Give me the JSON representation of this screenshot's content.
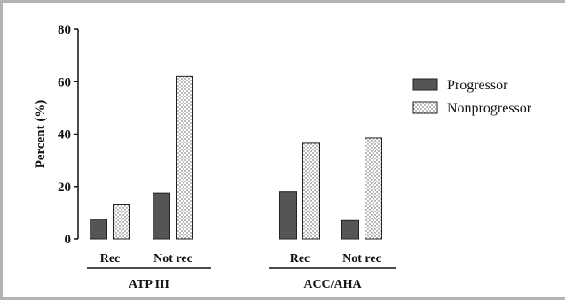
{
  "chart_data": {
    "type": "bar",
    "ylabel": "Percent (%)",
    "ylim": [
      0,
      80
    ],
    "yticks": [
      "0",
      "20",
      "40",
      "60",
      "80"
    ],
    "legend_position": "right",
    "groups": [
      {
        "name": "ATP III",
        "categories": [
          "Rec",
          "Not rec"
        ]
      },
      {
        "name": "ACC/AHA",
        "categories": [
          "Rec",
          "Not rec"
        ]
      }
    ],
    "categories": [
      "Rec",
      "Not rec",
      "Rec",
      "Not rec"
    ],
    "series": [
      {
        "name": "Progressor",
        "pattern": "solid",
        "color": "#555555",
        "values": [
          7.5,
          17.5,
          18,
          7
        ]
      },
      {
        "name": "Nonprogressor",
        "pattern": "dotted",
        "color": "#ffffff",
        "values": [
          13,
          62,
          36.5,
          38.5
        ]
      }
    ]
  }
}
